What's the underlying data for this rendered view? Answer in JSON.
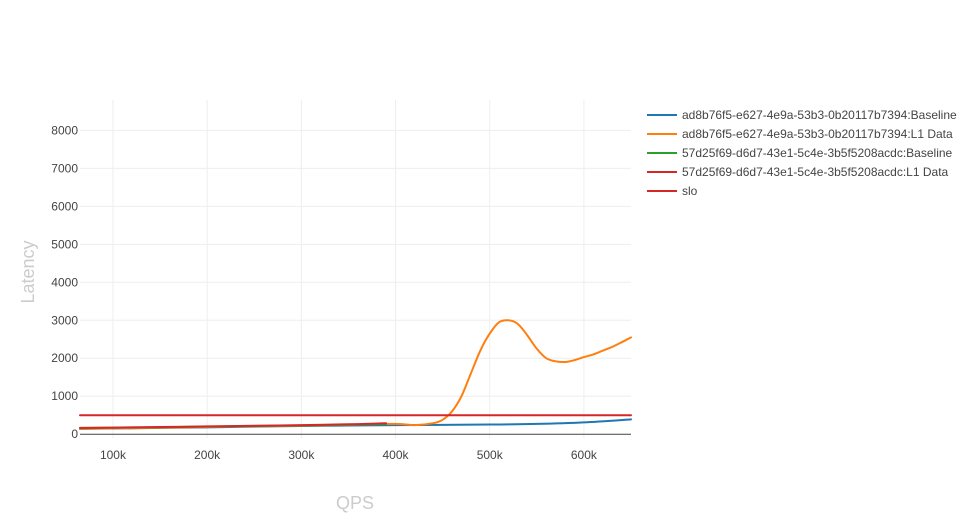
{
  "chart_data": {
    "type": "line",
    "title": "",
    "xlabel": "QPS",
    "ylabel": "Latency",
    "xlim": [
      65000,
      650000
    ],
    "ylim": [
      -100,
      8800
    ],
    "x_ticks": [
      100000,
      200000,
      300000,
      400000,
      500000,
      600000
    ],
    "x_tick_labels": [
      "100k",
      "200k",
      "300k",
      "400k",
      "500k",
      "600k"
    ],
    "y_ticks": [
      0,
      1000,
      2000,
      3000,
      4000,
      5000,
      6000,
      7000,
      8000
    ],
    "y_tick_labels": [
      "0",
      "1000",
      "2000",
      "3000",
      "4000",
      "5000",
      "6000",
      "7000",
      "8000"
    ],
    "grid": true,
    "legend_position": "top-right",
    "series": [
      {
        "name": "ad8b76f5-e627-4e9a-53b3-0b20117b7394:Baseline",
        "color": "#1f77b4",
        "x": [
          65000,
          100000,
          150000,
          200000,
          250000,
          300000,
          350000,
          400000,
          450000,
          500000,
          550000,
          600000,
          650000
        ],
        "y": [
          140,
          150,
          165,
          180,
          200,
          215,
          230,
          240,
          245,
          255,
          270,
          310,
          390
        ]
      },
      {
        "name": "ad8b76f5-e627-4e9a-53b3-0b20117b7394:L1 Data",
        "color": "#ff7f0e",
        "x": [
          65000,
          100000,
          150000,
          200000,
          250000,
          300000,
          350000,
          400000,
          420000,
          440000,
          450000,
          460000,
          470000,
          480000,
          490000,
          500000,
          510000,
          520000,
          530000,
          540000,
          550000,
          560000,
          570000,
          580000,
          590000,
          600000,
          610000,
          620000,
          630000,
          640000,
          650000
        ],
        "y": [
          145,
          155,
          170,
          190,
          210,
          225,
          250,
          270,
          240,
          290,
          380,
          600,
          1000,
          1600,
          2200,
          2650,
          2950,
          3000,
          2900,
          2600,
          2250,
          2000,
          1920,
          1900,
          1950,
          2030,
          2100,
          2200,
          2300,
          2420,
          2550
        ]
      },
      {
        "name": "57d25f69-d6d7-43e1-5c4e-3b5f5208acdc:Baseline",
        "color": "#2ca02c",
        "x": [
          65000,
          100000,
          150000,
          200000,
          250000,
          300000,
          350000,
          390000
        ],
        "y": [
          160,
          170,
          185,
          200,
          215,
          230,
          250,
          265
        ]
      },
      {
        "name": "57d25f69-d6d7-43e1-5c4e-3b5f5208acdc:L1 Data",
        "color": "#d62728",
        "x": [
          65000,
          100000,
          150000,
          200000,
          250000,
          300000,
          350000,
          390000
        ],
        "y": [
          165,
          175,
          190,
          205,
          220,
          240,
          260,
          290
        ]
      },
      {
        "name": "slo",
        "color": "#d62728",
        "x": [
          65000,
          650000
        ],
        "y": [
          500,
          500
        ]
      }
    ]
  }
}
